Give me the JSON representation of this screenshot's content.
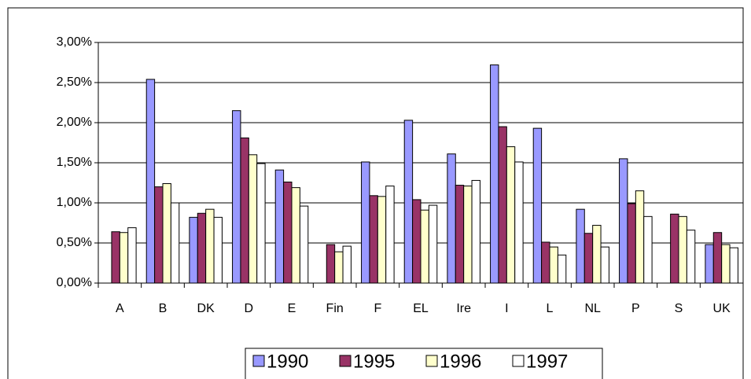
{
  "chart_data": {
    "type": "bar",
    "categories": [
      "A",
      "B",
      "DK",
      "D",
      "E",
      "Fin",
      "F",
      "EL",
      "Ire",
      "I",
      "L",
      "NL",
      "P",
      "S",
      "UK"
    ],
    "series": [
      {
        "name": "1990",
        "color": "#9999ff",
        "values": [
          null,
          2.54,
          0.82,
          2.15,
          1.41,
          null,
          1.51,
          2.03,
          1.61,
          2.72,
          1.93,
          0.92,
          1.55,
          null,
          0.48
        ]
      },
      {
        "name": "1995",
        "color": "#993366",
        "values": [
          0.64,
          1.2,
          0.87,
          1.81,
          1.26,
          0.48,
          1.09,
          1.04,
          1.22,
          1.95,
          0.51,
          0.62,
          0.99,
          0.86,
          0.63
        ]
      },
      {
        "name": "1996",
        "color": "#ffffcc",
        "values": [
          0.63,
          1.24,
          0.92,
          1.6,
          1.19,
          0.39,
          1.08,
          0.91,
          1.21,
          1.7,
          0.45,
          0.72,
          1.15,
          0.83,
          0.48
        ]
      },
      {
        "name": "1997",
        "color": "#ffffff",
        "values": [
          0.69,
          1.0,
          0.82,
          1.49,
          0.96,
          0.46,
          1.21,
          0.97,
          1.28,
          1.51,
          0.35,
          0.45,
          0.83,
          0.66,
          0.44
        ]
      }
    ],
    "ylim": [
      0,
      3
    ],
    "yticks": [
      {
        "value": 0,
        "label": "0,00%"
      },
      {
        "value": 0.5,
        "label": "0,50%"
      },
      {
        "value": 1,
        "label": "1,00%"
      },
      {
        "value": 1.5,
        "label": "1,50%"
      },
      {
        "value": 2,
        "label": "2,00%"
      },
      {
        "value": 2.5,
        "label": "2,50%"
      },
      {
        "value": 3,
        "label": "3,00%"
      }
    ],
    "grid": true,
    "legend": "bottom"
  }
}
